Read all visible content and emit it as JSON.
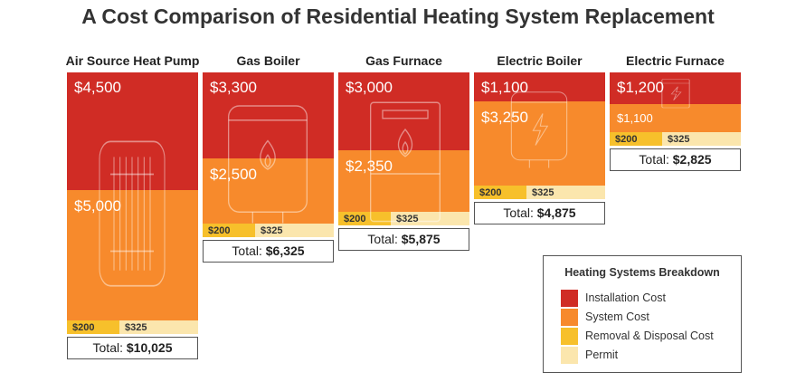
{
  "title": "A Cost Comparison of Residential Heating System Replacement",
  "colors": {
    "installation": "#d02c25",
    "system": "#f78a2c",
    "removal": "#f7c02b",
    "permit": "#fbe6ad"
  },
  "chart_data": {
    "type": "bar",
    "stacked": true,
    "title": "A Cost Comparison of Residential Heating System Replacement",
    "categories": [
      "Air Source Heat Pump",
      "Gas Boiler",
      "Gas Furnace",
      "Electric Boiler",
      "Electric Furnace"
    ],
    "series": [
      {
        "name": "Installation Cost",
        "values": [
          4500,
          3300,
          3000,
          1100,
          1200
        ],
        "labels": [
          "$4,500",
          "$3,300",
          "$3,000",
          "$1,100",
          "$1,200"
        ]
      },
      {
        "name": "System Cost",
        "values": [
          5000,
          2500,
          2350,
          3250,
          1100
        ],
        "labels": [
          "$5,000",
          "$2,500",
          "$2,350",
          "$3,250",
          "$1,100"
        ]
      },
      {
        "name": "Removal & Disposal Cost",
        "values": [
          200,
          200,
          200,
          200,
          200
        ],
        "labels": [
          "$200",
          "$200",
          "$200",
          "$200",
          "$200"
        ]
      },
      {
        "name": "Permit",
        "values": [
          325,
          325,
          325,
          325,
          325
        ],
        "labels": [
          "$325",
          "$325",
          "$325",
          "$325",
          "$325"
        ]
      }
    ],
    "totals": [
      10025,
      6325,
      5875,
      4875,
      2825
    ],
    "total_prefix": "Total:",
    "total_labels": [
      "$10,025",
      "$6,325",
      "$5,875",
      "$4,875",
      "$2,825"
    ],
    "icons": [
      "heat-pump-icon",
      "gas-boiler-icon",
      "gas-furnace-icon",
      "electric-boiler-icon",
      "electric-furnace-icon"
    ],
    "legend": {
      "title": "Heating Systems Breakdown",
      "position": "bottom-right",
      "items": [
        "Installation Cost",
        "System Cost",
        "Removal & Disposal Cost",
        "Permit"
      ]
    }
  }
}
